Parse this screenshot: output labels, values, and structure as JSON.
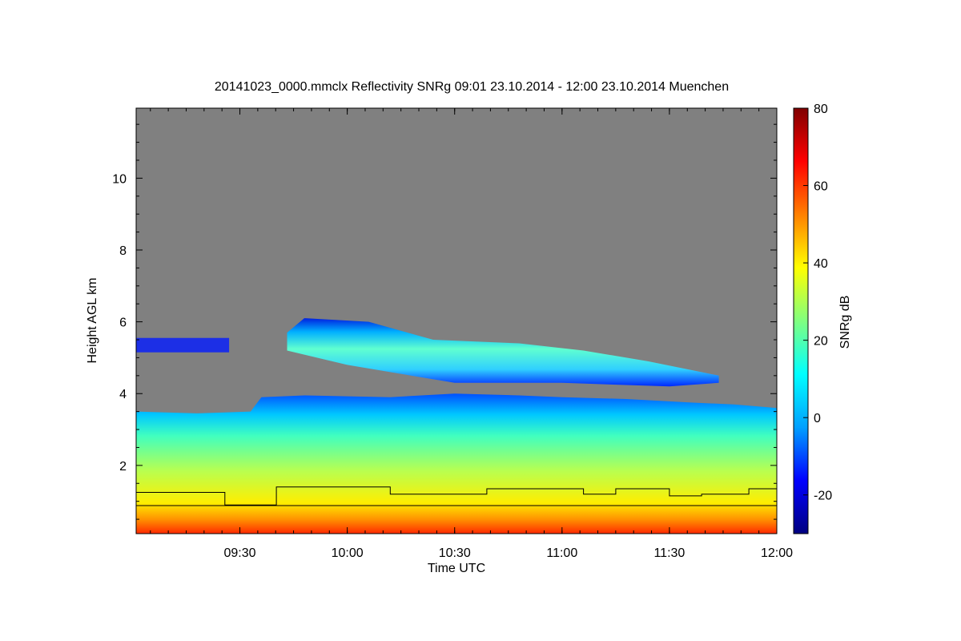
{
  "chart_data": {
    "type": "heatmap",
    "title": "20141023_0000.mmclx Reflectivity SNRg   09:01 23.10.2014 - 12:00 23.10.2014 Muenchen",
    "xlabel": "Time UTC",
    "ylabel": "Height AGL km",
    "colorbar_label": "SNRg dB",
    "x_range_hours": [
      9.017,
      12.0
    ],
    "y_range_km": [
      0.1,
      11.95
    ],
    "x_ticks": [
      {
        "value": 9.5,
        "label": "09:30"
      },
      {
        "value": 10.0,
        "label": "10:00"
      },
      {
        "value": 10.5,
        "label": "10:30"
      },
      {
        "value": 11.0,
        "label": "11:00"
      },
      {
        "value": 11.5,
        "label": "11:30"
      },
      {
        "value": 12.0,
        "label": "12:00"
      }
    ],
    "y_ticks": [
      {
        "value": 2,
        "label": "2"
      },
      {
        "value": 4,
        "label": "4"
      },
      {
        "value": 6,
        "label": "6"
      },
      {
        "value": 8,
        "label": "8"
      },
      {
        "value": 10,
        "label": "10"
      }
    ],
    "colorbar_range": [
      -30,
      80
    ],
    "colorbar_ticks": [
      {
        "value": -20,
        "label": "-20"
      },
      {
        "value": 0,
        "label": "0"
      },
      {
        "value": 20,
        "label": "20"
      },
      {
        "value": 40,
        "label": "40"
      },
      {
        "value": 60,
        "label": "60"
      },
      {
        "value": 80,
        "label": "80"
      }
    ],
    "colormap": [
      "#000080",
      "#0000ff",
      "#00a0ff",
      "#00ffff",
      "#80ff80",
      "#ffff00",
      "#ff8000",
      "#ff0000",
      "#800000"
    ],
    "background_color": "#808080",
    "cloud_layers": [
      {
        "name": "low-stratiform",
        "x_start": 9.017,
        "x_end": 12.0,
        "base_km": 0.1,
        "top_km": [
          [
            9.017,
            3.5
          ],
          [
            9.3,
            3.45
          ],
          [
            9.55,
            3.5
          ],
          [
            9.6,
            3.9
          ],
          [
            9.8,
            3.95
          ],
          [
            10.2,
            3.9
          ],
          [
            10.5,
            4.0
          ],
          [
            10.8,
            3.95
          ],
          [
            11.0,
            3.9
          ],
          [
            11.3,
            3.85
          ],
          [
            11.6,
            3.75
          ],
          [
            11.8,
            3.7
          ],
          [
            12.0,
            3.6
          ]
        ]
      },
      {
        "name": "upper-cirrus",
        "x_start": 9.72,
        "x_end": 11.73,
        "base_km": [
          [
            9.72,
            5.2
          ],
          [
            10.0,
            4.8
          ],
          [
            10.5,
            4.3
          ],
          [
            11.0,
            4.3
          ],
          [
            11.5,
            4.2
          ],
          [
            11.73,
            4.3
          ]
        ],
        "top_km": [
          [
            9.72,
            5.7
          ],
          [
            9.8,
            6.1
          ],
          [
            10.1,
            6.0
          ],
          [
            10.4,
            5.5
          ],
          [
            10.8,
            5.4
          ],
          [
            11.1,
            5.2
          ],
          [
            11.4,
            4.9
          ],
          [
            11.73,
            4.5
          ]
        ]
      },
      {
        "name": "thin-layer-left",
        "x_start": 9.017,
        "x_end": 9.45,
        "base_km": 5.15,
        "top_km": 5.55
      }
    ],
    "lines": [
      {
        "name": "upper-boundary",
        "points": [
          [
            9.017,
            1.25
          ],
          [
            9.43,
            1.25
          ],
          [
            9.43,
            0.9
          ],
          [
            9.67,
            0.9
          ],
          [
            9.67,
            1.4
          ],
          [
            10.2,
            1.4
          ],
          [
            10.2,
            1.2
          ],
          [
            10.65,
            1.2
          ],
          [
            10.65,
            1.35
          ],
          [
            11.1,
            1.35
          ],
          [
            11.1,
            1.2
          ],
          [
            11.25,
            1.2
          ],
          [
            11.25,
            1.35
          ],
          [
            11.5,
            1.35
          ],
          [
            11.5,
            1.15
          ],
          [
            11.65,
            1.15
          ],
          [
            11.65,
            1.2
          ],
          [
            11.87,
            1.2
          ],
          [
            11.87,
            1.35
          ],
          [
            12.0,
            1.35
          ]
        ]
      },
      {
        "name": "lower-boundary",
        "points": [
          [
            9.017,
            0.88
          ],
          [
            12.0,
            0.88
          ]
        ]
      }
    ]
  }
}
